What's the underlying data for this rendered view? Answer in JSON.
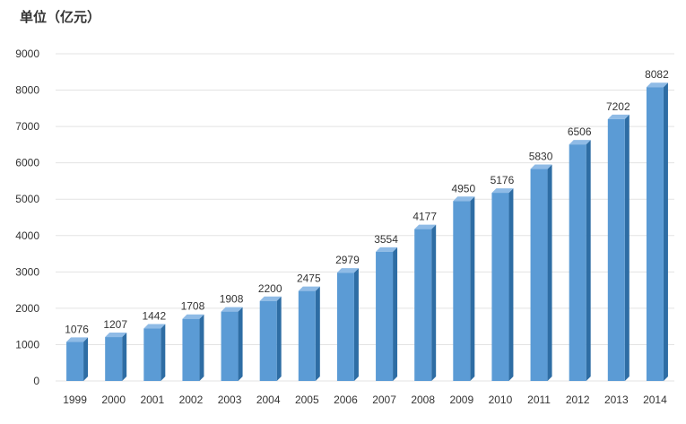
{
  "unit_label": "单位（亿元）",
  "colors": {
    "bar_front": "#5b9bd5",
    "bar_side": "#2e6da4",
    "bar_top": "#8fbbe6",
    "grid": "#e3e3e3",
    "text": "#333333"
  },
  "chart_data": {
    "type": "bar",
    "title": "",
    "xlabel": "",
    "ylabel": "单位（亿元）",
    "grid": true,
    "ylim": [
      0,
      9000
    ],
    "yticks": [
      0,
      1000,
      2000,
      3000,
      4000,
      5000,
      6000,
      7000,
      8000,
      9000
    ],
    "categories": [
      "1999",
      "2000",
      "2001",
      "2002",
      "2003",
      "2004",
      "2005",
      "2006",
      "2007",
      "2008",
      "2009",
      "2010",
      "2011",
      "2012",
      "2013",
      "2014"
    ],
    "values": [
      1076,
      1207,
      1442,
      1708,
      1908,
      2200,
      2475,
      2979,
      3554,
      4177,
      4950,
      5176,
      5830,
      6506,
      7202,
      8082
    ]
  }
}
